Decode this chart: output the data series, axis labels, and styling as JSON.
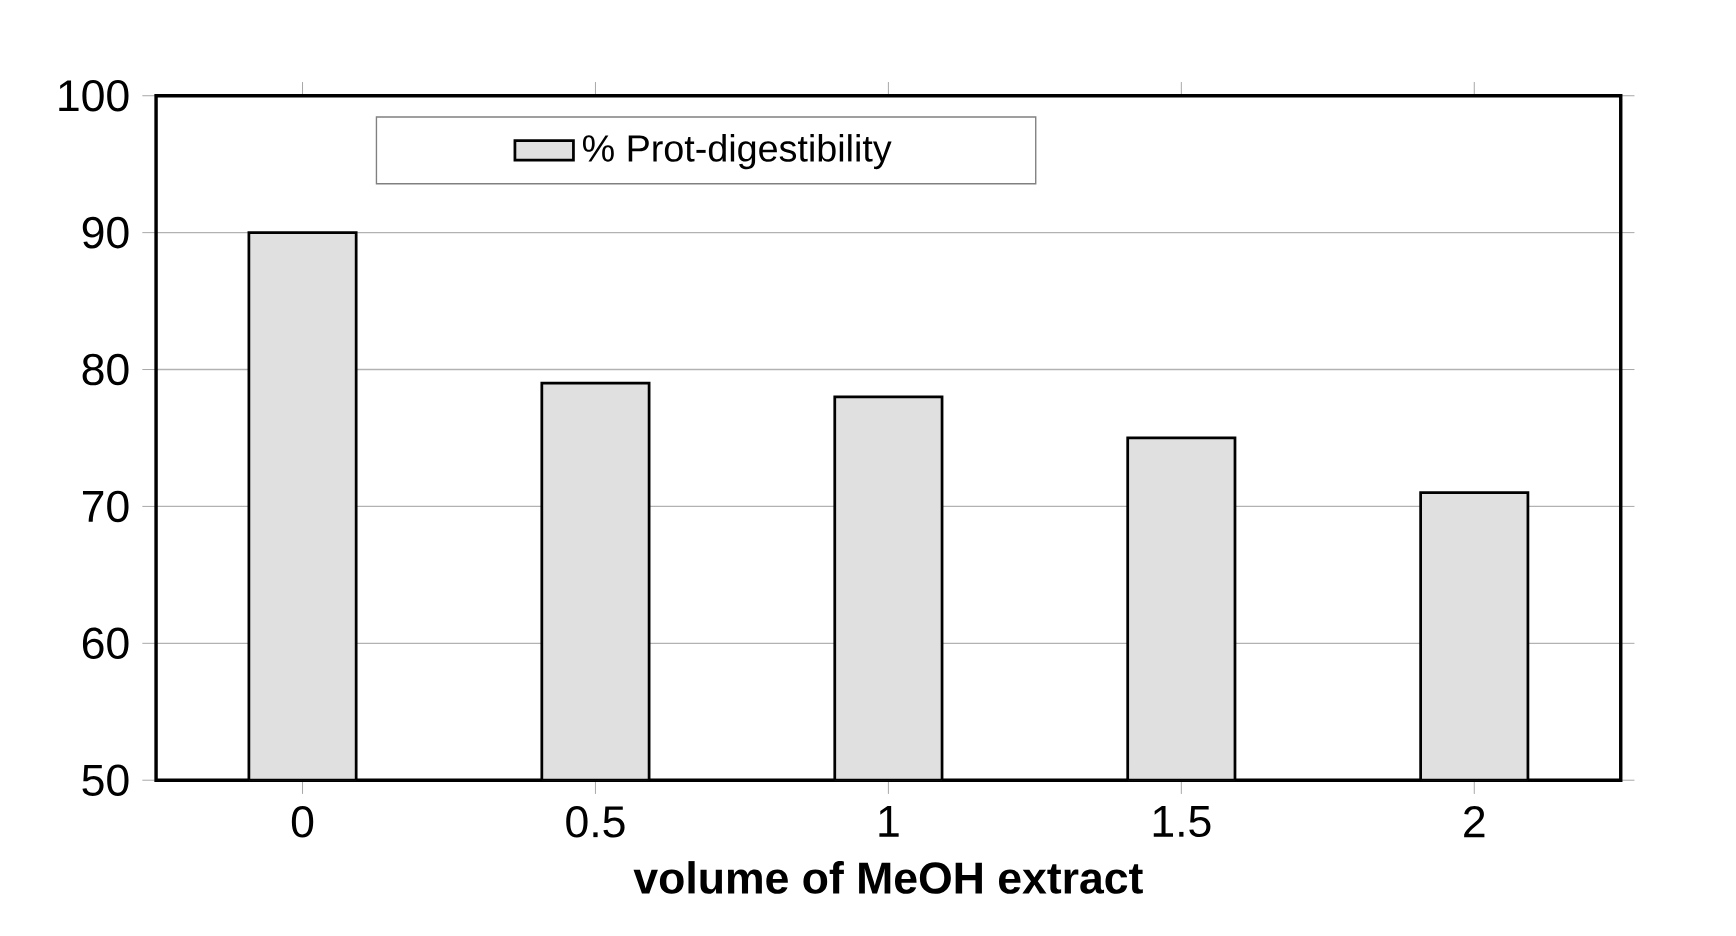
{
  "chart_data": {
    "type": "bar",
    "xlabel": "volume of MeOH extract",
    "categories": [
      "0",
      "0.5",
      "1",
      "1.5",
      "2"
    ],
    "series": [
      {
        "name": "% Prot-digestibility",
        "color": "#e0e0e0",
        "values": [
          90,
          79,
          78,
          75,
          71
        ]
      }
    ],
    "ylim": [
      50,
      100
    ],
    "yticks": [
      50,
      60,
      70,
      80,
      90,
      100
    ],
    "grid": "y",
    "legend": "top left"
  }
}
